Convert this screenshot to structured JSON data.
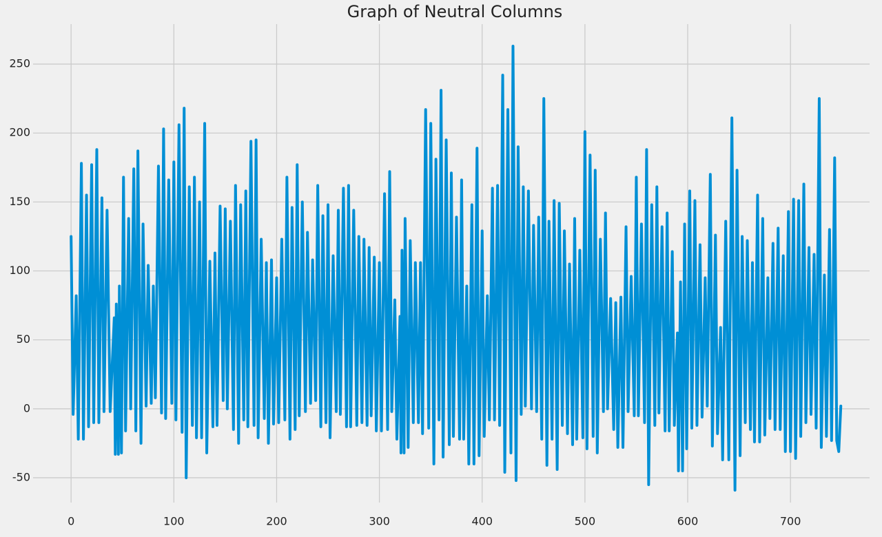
{
  "chart_data": {
    "type": "line",
    "title": "Graph of Neutral Columns",
    "x": [
      0,
      2,
      5,
      7,
      10,
      12,
      15,
      17,
      20,
      22,
      25,
      27,
      30,
      32,
      35,
      38,
      42,
      43,
      44,
      46,
      47,
      49,
      51,
      53,
      56,
      58,
      61,
      63,
      65,
      68,
      70,
      73,
      75,
      78,
      80,
      82,
      85,
      88,
      90,
      92,
      95,
      98,
      100,
      102,
      105,
      108,
      110,
      112,
      115,
      118,
      120,
      122,
      125,
      127,
      130,
      132,
      135,
      138,
      140,
      142,
      145,
      148,
      150,
      152,
      155,
      158,
      160,
      163,
      165,
      168,
      170,
      172,
      175,
      178,
      180,
      182,
      185,
      188,
      190,
      192,
      195,
      197,
      200,
      202,
      205,
      208,
      210,
      213,
      215,
      218,
      220,
      222,
      225,
      228,
      230,
      233,
      235,
      238,
      240,
      243,
      245,
      248,
      250,
      252,
      255,
      258,
      260,
      262,
      265,
      268,
      270,
      272,
      275,
      278,
      280,
      283,
      285,
      288,
      290,
      292,
      295,
      297,
      300,
      302,
      305,
      308,
      310,
      312,
      315,
      317,
      320,
      321,
      322,
      324,
      325,
      328,
      330,
      333,
      335,
      338,
      340,
      342,
      345,
      348,
      350,
      353,
      355,
      358,
      360,
      362,
      365,
      368,
      370,
      372,
      375,
      378,
      380,
      382,
      385,
      387,
      390,
      392,
      395,
      397,
      400,
      402,
      405,
      407,
      410,
      412,
      415,
      417,
      420,
      422,
      425,
      428,
      430,
      433,
      435,
      438,
      440,
      442,
      445,
      448,
      450,
      453,
      455,
      458,
      460,
      463,
      465,
      468,
      470,
      473,
      475,
      478,
      480,
      483,
      485,
      488,
      490,
      492,
      495,
      498,
      500,
      502,
      505,
      508,
      510,
      512,
      515,
      518,
      520,
      522,
      525,
      528,
      530,
      532,
      535,
      537,
      540,
      542,
      545,
      548,
      550,
      552,
      555,
      558,
      560,
      562,
      565,
      568,
      570,
      572,
      575,
      578,
      580,
      582,
      585,
      587,
      590,
      591,
      593,
      595,
      597,
      599,
      602,
      604,
      607,
      609,
      612,
      614,
      617,
      619,
      622,
      624,
      627,
      629,
      632,
      634,
      637,
      640,
      643,
      646,
      648,
      651,
      653,
      656,
      658,
      661,
      663,
      665,
      668,
      670,
      673,
      675,
      678,
      680,
      683,
      685,
      688,
      690,
      693,
      695,
      698,
      700,
      703,
      705,
      708,
      710,
      713,
      715,
      718,
      720,
      723,
      725,
      728,
      730,
      733,
      735,
      738,
      740,
      743,
      745,
      747,
      749
    ],
    "series": [
      {
        "color": "#008fd5",
        "values": [
          125,
          -4,
          82,
          -22,
          178,
          -22,
          155,
          -13,
          177,
          -10,
          188,
          -10,
          153,
          -2,
          144,
          -2,
          66,
          -33,
          76,
          -33,
          89,
          -32,
          168,
          -16,
          138,
          0,
          174,
          -16,
          187,
          -25,
          134,
          2,
          104,
          4,
          89,
          8,
          176,
          -3,
          203,
          -7,
          166,
          4,
          179,
          -8,
          206,
          -17,
          218,
          -50,
          161,
          -12,
          168,
          -21,
          150,
          -21,
          207,
          -32,
          107,
          -13,
          113,
          -12,
          147,
          6,
          145,
          0,
          136,
          -15,
          162,
          -25,
          148,
          -8,
          158,
          -13,
          194,
          -12,
          195,
          -21,
          123,
          -7,
          106,
          -25,
          108,
          -11,
          95,
          -10,
          123,
          -8,
          168,
          -22,
          146,
          -15,
          177,
          -5,
          150,
          -2,
          128,
          4,
          108,
          6,
          162,
          -13,
          140,
          -10,
          148,
          -21,
          111,
          -2,
          144,
          -4,
          160,
          -13,
          162,
          -13,
          144,
          -12,
          125,
          -10,
          123,
          -12,
          117,
          -5,
          110,
          -16,
          106,
          -16,
          156,
          -15,
          172,
          -2,
          79,
          -22,
          67,
          -32,
          115,
          -32,
          138,
          -28,
          122,
          -10,
          106,
          -10,
          106,
          -18,
          217,
          -14,
          207,
          -40,
          181,
          -8,
          231,
          -35,
          195,
          -26,
          171,
          -20,
          139,
          -22,
          166,
          -22,
          89,
          -40,
          148,
          -40,
          189,
          -34,
          129,
          -20,
          82,
          -8,
          160,
          -8,
          162,
          -12,
          242,
          -46,
          217,
          -32,
          263,
          -52,
          190,
          -4,
          161,
          2,
          158,
          0,
          133,
          -2,
          139,
          -22,
          225,
          -41,
          136,
          -22,
          151,
          -44,
          149,
          -12,
          129,
          -18,
          105,
          -26,
          138,
          -22,
          115,
          -21,
          201,
          -29,
          184,
          -20,
          173,
          -32,
          123,
          -2,
          142,
          0,
          80,
          -15,
          77,
          -28,
          81,
          -28,
          132,
          -2,
          96,
          -5,
          168,
          -5,
          134,
          -10,
          188,
          -55,
          148,
          -12,
          161,
          -3,
          132,
          -16,
          142,
          -16,
          114,
          -12,
          55,
          -45,
          92,
          -45,
          134,
          -29,
          158,
          -14,
          151,
          -12,
          119,
          -6,
          95,
          2,
          170,
          -27,
          126,
          -18,
          59,
          -37,
          136,
          -37,
          211,
          -59,
          173,
          -34,
          125,
          -10,
          122,
          -15,
          106,
          -24,
          155,
          -24,
          138,
          -19,
          95,
          -7,
          120,
          -15,
          131,
          -15,
          111,
          -31,
          143,
          -31,
          152,
          -36,
          151,
          -20,
          163,
          -10,
          117,
          -4,
          112,
          -14,
          225,
          -28,
          97,
          -20,
          130,
          -23,
          182,
          -23,
          -31,
          2
        ]
      }
    ],
    "xlim": [
      -37,
      777
    ],
    "ylim": [
      -68,
      279
    ],
    "xticks": [
      0,
      100,
      200,
      300,
      400,
      500,
      600,
      700
    ],
    "yticks": [
      -50,
      0,
      50,
      100,
      150,
      200,
      250
    ],
    "grid": true
  }
}
